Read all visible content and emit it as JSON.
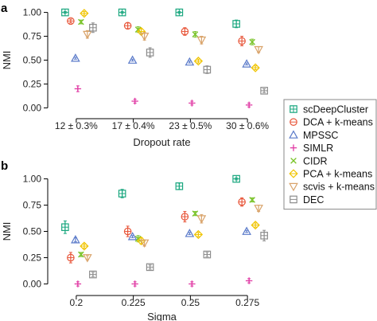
{
  "colors": {
    "scDeepCluster": "#1aa77f",
    "DCA + k-means": "#e8563a",
    "MPSSC": "#5a7ac9",
    "SIMLR": "#e03aa4",
    "CIDR": "#7bc42c",
    "PCA + k-means": "#f0c400",
    "scvis + k-means": "#d9a36a",
    "DEC": "#8c8c8c"
  },
  "legend": {
    "placement": "right",
    "entries": [
      "scDeepCluster",
      "DCA + k-means",
      "MPSSC",
      "SIMLR",
      "CIDR",
      "PCA + k-means",
      "scvis + k-means",
      "DEC"
    ]
  },
  "chart_data": [
    {
      "panel_label": "a",
      "type": "scatter",
      "xlabel": "Dropout rate",
      "ylabel": "NMI",
      "ylim": [
        -0.08,
        1.08
      ],
      "yticks": [
        "0.00",
        "0.25",
        "0.50",
        "0.75",
        "1.00"
      ],
      "ytick_values": [
        0,
        0.25,
        0.5,
        0.75,
        1.0
      ],
      "categories": [
        "12 ± 0.3%",
        "17 ± 0.4%",
        "23 ± 0.5%",
        "30 ± 0.6%"
      ],
      "series": [
        {
          "name": "scDeepCluster",
          "values": [
            1.0,
            1.0,
            1.0,
            0.88
          ],
          "err": [
            0.01,
            0.01,
            0.01,
            0.04
          ]
        },
        {
          "name": "DCA + k-means",
          "values": [
            0.91,
            0.86,
            0.8,
            0.7
          ],
          "err": [
            0.02,
            0.03,
            0.04,
            0.05
          ]
        },
        {
          "name": "MPSSC",
          "values": [
            0.52,
            0.5,
            0.48,
            0.46
          ],
          "err": [
            0.01,
            0.01,
            0.01,
            0.01
          ]
        },
        {
          "name": "SIMLR",
          "values": [
            0.2,
            0.07,
            0.05,
            0.03
          ],
          "err": [
            0.03,
            0.02,
            0.02,
            0.02
          ]
        },
        {
          "name": "CIDR",
          "values": [
            0.9,
            0.82,
            0.77,
            0.69
          ],
          "err": [
            0.02,
            0.03,
            0.03,
            0.03
          ]
        },
        {
          "name": "PCA + k-means",
          "values": [
            0.99,
            0.8,
            0.49,
            0.42
          ],
          "err": [
            0.02,
            0.03,
            0.02,
            0.02
          ]
        },
        {
          "name": "scvis + k-means",
          "values": [
            0.77,
            0.75,
            0.71,
            0.61
          ],
          "err": [
            0.04,
            0.04,
            0.04,
            0.03
          ]
        },
        {
          "name": "DEC",
          "values": [
            0.84,
            0.58,
            0.4,
            0.18
          ],
          "err": [
            0.05,
            0.05,
            0.04,
            0.02
          ]
        }
      ]
    },
    {
      "panel_label": "b",
      "type": "scatter",
      "xlabel": "Sigma",
      "ylabel": "NMI",
      "ylim": [
        -0.08,
        1.08
      ],
      "yticks": [
        "0.00",
        "0.25",
        "0.50",
        "0.75",
        "1.00"
      ],
      "ytick_values": [
        0,
        0.25,
        0.5,
        0.75,
        1.0
      ],
      "categories": [
        "0.2",
        "0.225",
        "0.25",
        "0.275"
      ],
      "series": [
        {
          "name": "scDeepCluster",
          "values": [
            0.54,
            0.86,
            0.93,
            1.0
          ],
          "err": [
            0.06,
            0.04,
            0.03,
            0.01
          ]
        },
        {
          "name": "DCA + k-means",
          "values": [
            0.25,
            0.5,
            0.64,
            0.78
          ],
          "err": [
            0.05,
            0.05,
            0.05,
            0.04
          ]
        },
        {
          "name": "MPSSC",
          "values": [
            0.42,
            0.45,
            0.48,
            0.5
          ],
          "err": [
            0.02,
            0.01,
            0.01,
            0.01
          ]
        },
        {
          "name": "SIMLR",
          "values": [
            0.0,
            0.0,
            0.0,
            0.03
          ],
          "err": [
            0.02,
            0.02,
            0.02,
            0.02
          ]
        },
        {
          "name": "CIDR",
          "values": [
            0.28,
            0.43,
            0.67,
            0.8
          ],
          "err": [
            0.02,
            0.03,
            0.02,
            0.02
          ]
        },
        {
          "name": "PCA + k-means",
          "values": [
            0.36,
            0.41,
            0.47,
            0.56
          ],
          "err": [
            0.02,
            0.03,
            0.02,
            0.02
          ]
        },
        {
          "name": "scvis + k-means",
          "values": [
            0.25,
            0.39,
            0.62,
            0.72
          ],
          "err": [
            0.02,
            0.03,
            0.04,
            0.03
          ]
        },
        {
          "name": "DEC",
          "values": [
            0.09,
            0.16,
            0.28,
            0.46
          ],
          "err": [
            0.02,
            0.02,
            0.02,
            0.05
          ]
        }
      ]
    }
  ]
}
